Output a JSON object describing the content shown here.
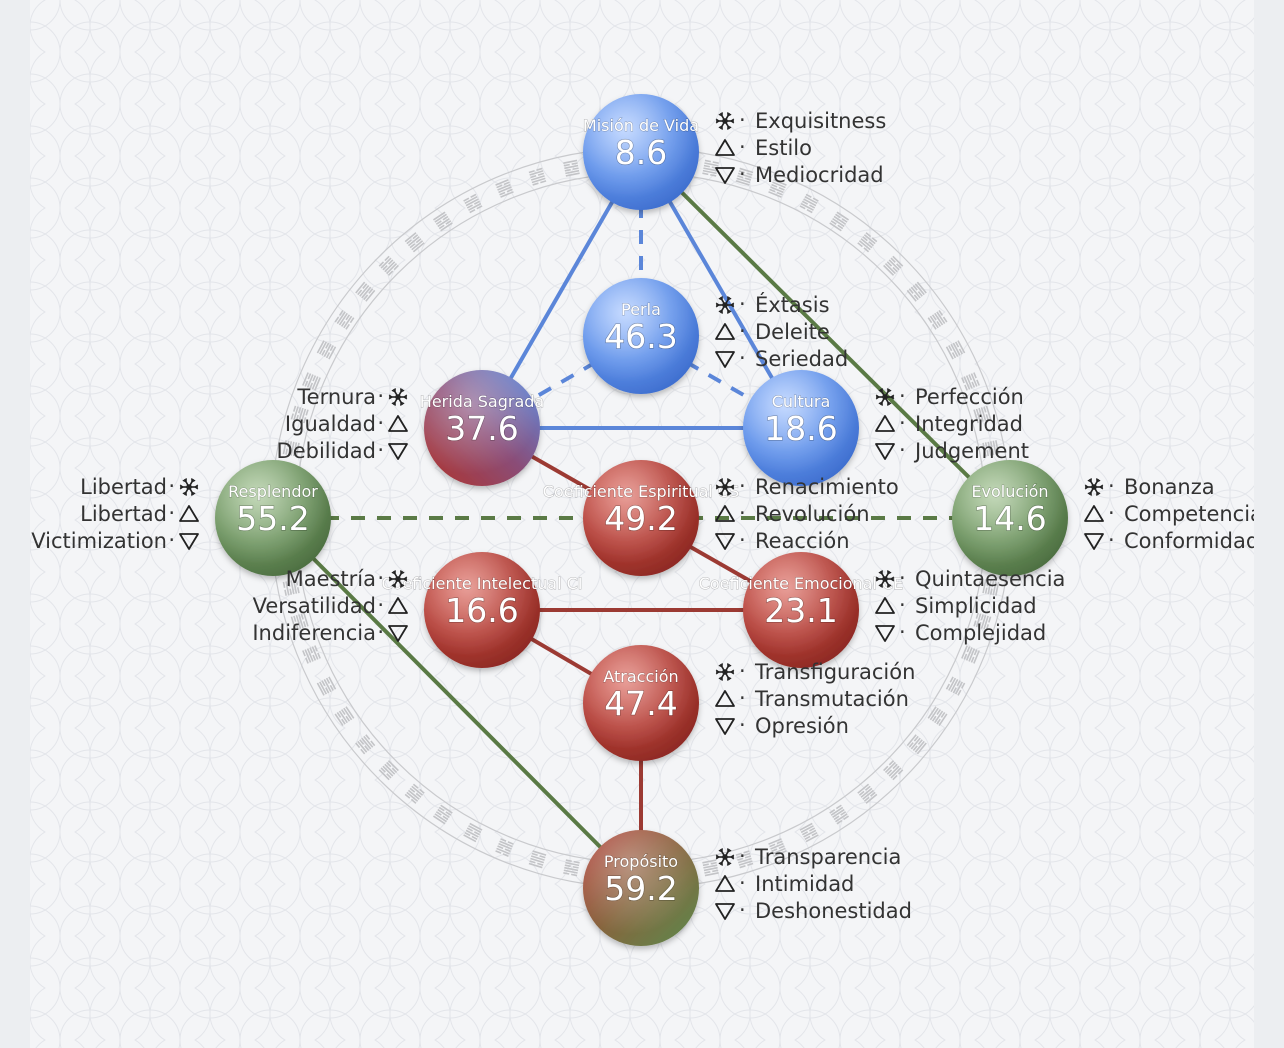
{
  "colors": {
    "blue": "#5b8de0",
    "red": "#a6423b",
    "green": "#5a7d4a",
    "line_blue": "#5b86d9",
    "line_red": "#9c3a33",
    "line_green": "#5a7a45"
  },
  "icons": {
    "main": "snowflake-icon",
    "up": "triangle-up-icon",
    "down": "triangle-down-icon"
  },
  "nodes": [
    {
      "id": "mision",
      "title": "Misión de Vida",
      "value": "8.6",
      "color": "blue",
      "labels_side": "right",
      "labels": [
        "Exquisitness",
        "Estilo",
        "Mediocridad"
      ]
    },
    {
      "id": "perla",
      "title": "Perla",
      "value": "46.3",
      "color": "blue",
      "labels_side": "right",
      "labels": [
        "Éxtasis",
        "Deleite",
        "Seriedad"
      ]
    },
    {
      "id": "herida",
      "title": "Herida Sagrada",
      "value": "37.6",
      "color": "blue-red",
      "labels_side": "left",
      "labels": [
        "Ternura",
        "Igualdad",
        "Debilidad"
      ]
    },
    {
      "id": "cultura",
      "title": "Cultura",
      "value": "18.6",
      "color": "blue",
      "labels_side": "right",
      "labels": [
        "Perfección",
        "Integridad",
        "Judgement"
      ]
    },
    {
      "id": "resplendor",
      "title": "Resplendor",
      "value": "55.2",
      "color": "green",
      "labels_side": "left",
      "labels": [
        "Libertad",
        "Libertad",
        "Victimization"
      ]
    },
    {
      "id": "cs",
      "title": "Coeficiente Espiritual CS",
      "value": "49.2",
      "color": "red",
      "labels_side": "right",
      "labels": [
        "Renacimiento",
        "Revolución",
        "Reacción"
      ]
    },
    {
      "id": "evolucion",
      "title": "Evolución",
      "value": "14.6",
      "color": "green",
      "labels_side": "right",
      "labels": [
        "Bonanza",
        "Competencia",
        "Conformidad"
      ]
    },
    {
      "id": "ci",
      "title": "Coeficiente Intelectual CI",
      "value": "16.6",
      "color": "red",
      "labels_side": "left",
      "labels": [
        "Maestría",
        "Versatilidad",
        "Indiferencia"
      ]
    },
    {
      "id": "ce",
      "title": "Coeficiente Emocional CE",
      "value": "23.1",
      "color": "red",
      "labels_side": "right",
      "labels": [
        "Quintaesencia",
        "Simplicidad",
        "Complejidad"
      ]
    },
    {
      "id": "atraccion",
      "title": "Atracción",
      "value": "47.4",
      "color": "red",
      "labels_side": "right",
      "labels": [
        "Transfiguración",
        "Transmutación",
        "Opresión"
      ]
    },
    {
      "id": "proposito",
      "title": "Propósito",
      "value": "59.2",
      "color": "red-green",
      "labels_side": "right",
      "labels": [
        "Transparencia",
        "Intimidad",
        "Deshonestidad"
      ]
    }
  ],
  "edges": [
    {
      "from": "mision",
      "to": "herida",
      "style": "solid",
      "color": "line_blue"
    },
    {
      "from": "mision",
      "to": "cultura",
      "style": "solid",
      "color": "line_blue"
    },
    {
      "from": "herida",
      "to": "cultura",
      "style": "solid",
      "color": "line_blue"
    },
    {
      "from": "mision",
      "to": "perla",
      "style": "dashed",
      "color": "line_blue"
    },
    {
      "from": "perla",
      "to": "herida",
      "style": "dashed",
      "color": "line_blue"
    },
    {
      "from": "perla",
      "to": "cultura",
      "style": "dashed",
      "color": "line_blue"
    },
    {
      "from": "mision",
      "to": "evolucion",
      "style": "solid",
      "color": "line_green"
    },
    {
      "from": "resplendor",
      "to": "proposito",
      "style": "solid",
      "color": "line_green"
    },
    {
      "from": "resplendor",
      "to": "evolucion",
      "style": "dashed",
      "color": "line_green"
    },
    {
      "from": "herida",
      "to": "ce",
      "style": "solid",
      "color": "line_red"
    },
    {
      "from": "ci",
      "to": "ce",
      "style": "solid",
      "color": "line_red"
    },
    {
      "from": "ci",
      "to": "atraccion",
      "style": "solid",
      "color": "line_red"
    },
    {
      "from": "atraccion",
      "to": "proposito",
      "style": "solid",
      "color": "line_red"
    }
  ]
}
